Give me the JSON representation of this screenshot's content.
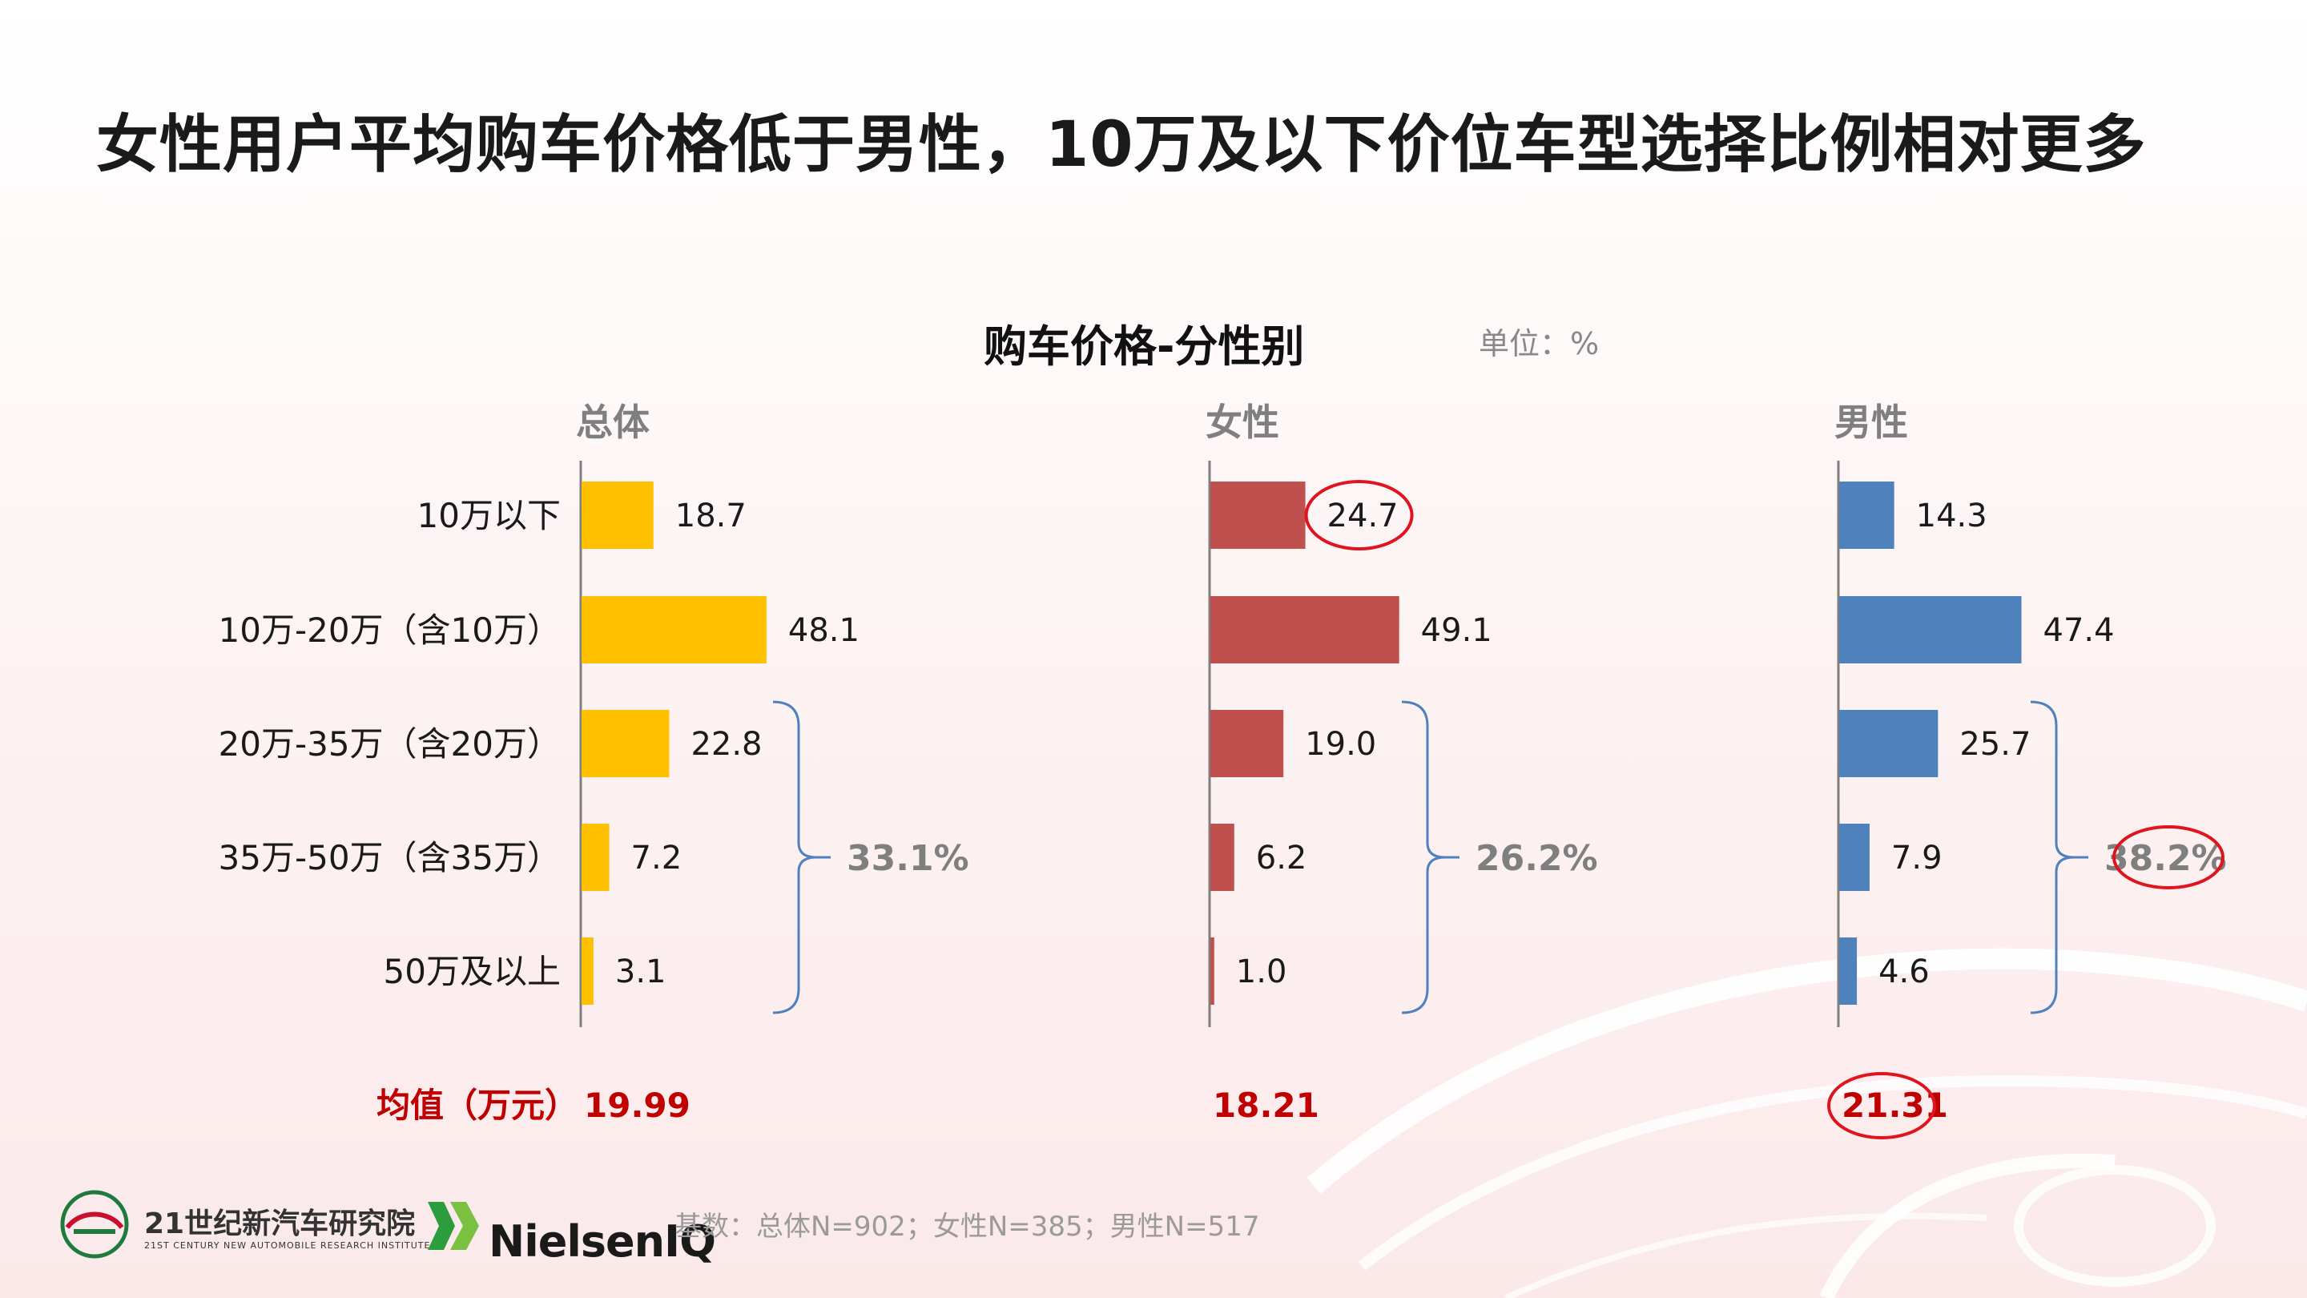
{
  "title": "女性用户平均购车价格低于男性，10万及以下价位车型选择比例相对更多",
  "chart_title": "购车价格-分性别",
  "unit_label": "单位：%",
  "footnote": "基数：总体N=902；女性N=385；男性N=517",
  "logos": {
    "institute_cn": "21世纪新汽车研究院",
    "institute_en": "21ST CENTURY NEW AUTOMOBILE RESEARCH INSTITUTE",
    "nielsen": "NielsenIQ"
  },
  "colors": {
    "total": "#FFC000",
    "female": "#C0504D",
    "male": "#4F81BD",
    "red_text": "#C00000",
    "circle": "#E0141E",
    "bracket": "#4F81BD"
  },
  "chart_data": {
    "type": "bar",
    "orientation": "horizontal",
    "categories": [
      "10万以下",
      "10万-20万（含10万）",
      "20万-35万（含20万）",
      "35万-50万（含35万）",
      "50万及以上"
    ],
    "series": [
      {
        "name": "总体",
        "values": [
          18.7,
          48.1,
          22.8,
          7.2,
          3.1
        ],
        "bracket_total": "33.1%",
        "mean": "19.99"
      },
      {
        "name": "女性",
        "values": [
          24.7,
          49.1,
          19.0,
          6.2,
          1.0
        ],
        "bracket_total": "26.2%",
        "mean": "18.21"
      },
      {
        "name": "男性",
        "values": [
          14.3,
          47.4,
          25.7,
          7.9,
          4.6
        ],
        "bracket_total": "38.2%",
        "mean": "21.31"
      }
    ],
    "mean_label": "均值（万元）",
    "highlighted": [
      "女性:10万以下",
      "男性:bracket_total",
      "男性:mean"
    ],
    "value_format": "one decimal"
  }
}
